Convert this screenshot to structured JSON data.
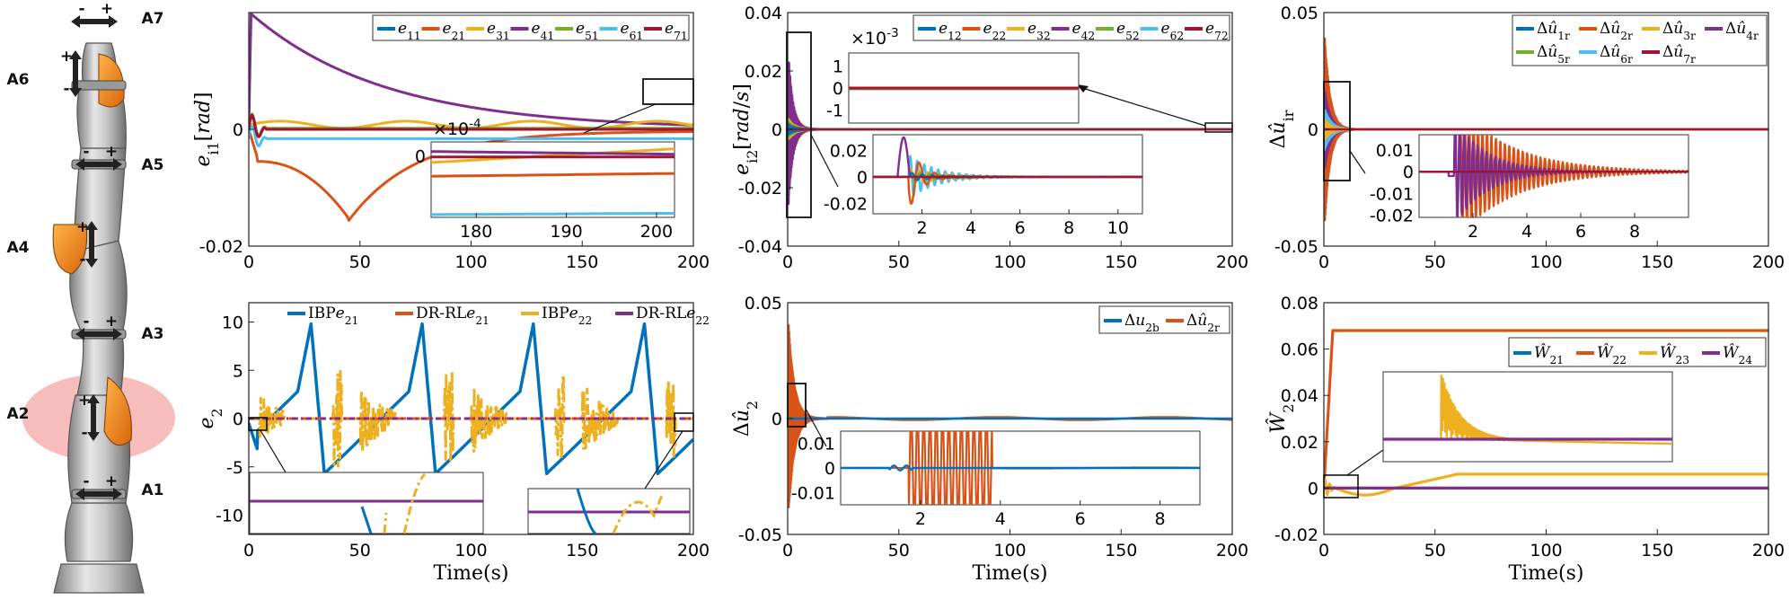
{
  "figure": {
    "robot_joints": [
      "A1",
      "A2",
      "A3",
      "A4",
      "A5",
      "A6",
      "A7"
    ],
    "shared_xlabel": "Time(s)",
    "colors": {
      "blue": "#0072BD",
      "orange": "#D95319",
      "yellow": "#EDB120",
      "purple": "#7E2F8E",
      "green": "#77AC30",
      "cyan": "#4DBEEE",
      "maroon": "#A2142F"
    }
  },
  "chart_data": [
    {
      "id": "p1",
      "type": "line",
      "ylabel": "e_{i1}[rad]",
      "xlabel": "",
      "xlim": [
        0,
        200
      ],
      "ylim": [
        -0.02,
        0.02
      ],
      "xticks": [
        "0",
        "50",
        "100",
        "150",
        "200"
      ],
      "yticks": [
        "-0.02",
        "0"
      ],
      "legend": [
        "e11",
        "e21",
        "e31",
        "e41",
        "e51",
        "e61",
        "e71"
      ],
      "series": [
        {
          "name": "e41",
          "kind": "exp",
          "a": 0.0198,
          "tau": 60,
          "color": "purple"
        },
        {
          "name": "e21",
          "kind": "e21",
          "color": "orange"
        },
        {
          "name": "e61",
          "kind": "const",
          "y": -0.0016,
          "color": "cyan"
        },
        {
          "name": "e31",
          "kind": "wav",
          "y": 0.0008,
          "amp": 0.0006,
          "color": "yellow"
        },
        {
          "name": "e51",
          "kind": "const",
          "y": 0.0002,
          "color": "green"
        },
        {
          "name": "e11",
          "kind": "const",
          "y": 0.0,
          "color": "blue"
        },
        {
          "name": "e71",
          "kind": "const",
          "y": 0.0,
          "color": "maroon"
        }
      ],
      "inset": {
        "exponent": "×10^{-4}",
        "xticks": [
          "180",
          "190",
          "200"
        ],
        "yticks": [
          "0"
        ]
      }
    },
    {
      "id": "p2",
      "type": "line",
      "ylabel": "e_{i2}[rad/s]",
      "xlim": [
        0,
        200
      ],
      "ylim": [
        -0.04,
        0.04
      ],
      "xticks": [
        "0",
        "50",
        "100",
        "150",
        "200"
      ],
      "yticks": [
        "-0.04",
        "-0.02",
        "0",
        "0.02",
        "0.04"
      ],
      "legend": [
        "e12",
        "e22",
        "e32",
        "e42",
        "e52",
        "e62",
        "e72"
      ],
      "inset_top": {
        "exponent": "×10^{-3}",
        "yticks": [
          "1",
          "0",
          "-1"
        ]
      },
      "inset_bottom": {
        "xticks": [
          "2",
          "4",
          "6",
          "8",
          "10"
        ],
        "yticks": [
          "0.02",
          "0",
          "-0.02"
        ]
      }
    },
    {
      "id": "p3",
      "type": "line",
      "ylabel": "Δû_{i_r}",
      "xlim": [
        0,
        200
      ],
      "ylim": [
        -0.05,
        0.05
      ],
      "xticks": [
        "0",
        "50",
        "100",
        "150",
        "200"
      ],
      "yticks": [
        "-0.05",
        "0",
        "0.05"
      ],
      "legend": [
        "Δû1r",
        "Δû2r",
        "Δû3r",
        "Δû4r",
        "Δû5r",
        "Δû6r",
        "Δû7r"
      ],
      "inset": {
        "xticks": [
          "2",
          "4",
          "6",
          "8"
        ],
        "yticks": [
          "0.01",
          "0",
          "-0.01",
          "-0.02"
        ]
      }
    },
    {
      "id": "p4",
      "type": "line",
      "ylabel": "e_2",
      "xlabel": "Time(s)",
      "xlim": [
        0,
        200
      ],
      "ylim": [
        -12,
        12
      ],
      "xticks": [
        "0",
        "50",
        "100",
        "150",
        "200"
      ],
      "yticks": [
        "-10",
        "-5",
        "0",
        "5",
        "10"
      ],
      "legend": [
        "IBPe21",
        "DR-RLe21",
        "IBPe22",
        "DR-RLe22"
      ]
    },
    {
      "id": "p5",
      "type": "line",
      "ylabel": "Δû_2",
      "xlabel": "Time(s)",
      "xlim": [
        0,
        200
      ],
      "ylim": [
        -0.05,
        0.05
      ],
      "xticks": [
        "0",
        "50",
        "100",
        "150",
        "200"
      ],
      "yticks": [
        "-0.05",
        "0",
        "0.05"
      ],
      "legend": [
        "Δu2b",
        "Δû2r"
      ],
      "inset": {
        "xticks": [
          "2",
          "4",
          "6",
          "8"
        ],
        "yticks": [
          "0.01",
          "0",
          "-0.01"
        ]
      }
    },
    {
      "id": "p6",
      "type": "line",
      "ylabel": "Ŵ_2",
      "xlabel": "Time(s)",
      "xlim": [
        0,
        200
      ],
      "ylim": [
        -0.02,
        0.08
      ],
      "xticks": [
        "0",
        "50",
        "100",
        "150",
        "200"
      ],
      "yticks": [
        "-0.02",
        "0",
        "0.02",
        "0.04",
        "0.06",
        "0.08"
      ],
      "legend": [
        "Ŵ21",
        "Ŵ22",
        "Ŵ23",
        "Ŵ24"
      ],
      "series": [
        {
          "name": "Ŵ22",
          "final": 0.068,
          "color": "orange"
        },
        {
          "name": "Ŵ23",
          "final": 0.006,
          "color": "yellow"
        },
        {
          "name": "Ŵ24",
          "final": 0.0,
          "color": "purple"
        },
        {
          "name": "Ŵ21",
          "final": 0.0,
          "color": "blue"
        }
      ]
    }
  ]
}
